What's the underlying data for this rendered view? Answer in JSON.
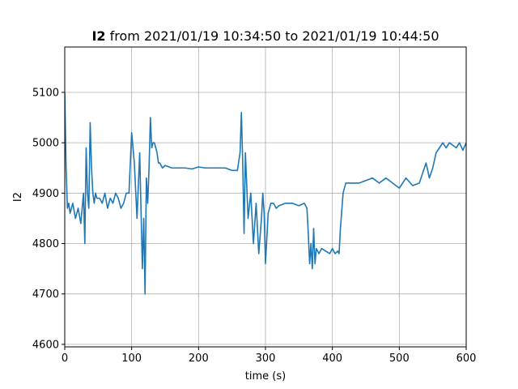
{
  "chart_data": {
    "type": "line",
    "title_bold": "I2",
    "title_rest": " from 2021/01/19 10:34:50 to 2021/01/19 10:44:50",
    "xlabel": "time (s)",
    "ylabel": "I2",
    "xlim": [
      0,
      600
    ],
    "ylim": [
      4595,
      5190
    ],
    "xticks": [
      0,
      100,
      200,
      300,
      400,
      500,
      600
    ],
    "yticks": [
      4600,
      4700,
      4800,
      4900,
      5000,
      5100
    ],
    "grid": true,
    "line_color": "#1f77b4",
    "series": [
      {
        "x": [
          0,
          2,
          4,
          6,
          8,
          12,
          16,
          20,
          24,
          28,
          30,
          32,
          34,
          36,
          38,
          40,
          42,
          44,
          46,
          48,
          52,
          56,
          60,
          64,
          68,
          72,
          76,
          80,
          84,
          88,
          92,
          96,
          100,
          104,
          108,
          112,
          116,
          118,
          120,
          122,
          124,
          126,
          128,
          130,
          132,
          134,
          136,
          138,
          140,
          142,
          146,
          150,
          160,
          170,
          180,
          190,
          200,
          210,
          220,
          230,
          240,
          250,
          258,
          262,
          264,
          266,
          268,
          270,
          274,
          278,
          282,
          286,
          290,
          294,
          296,
          298,
          300,
          304,
          308,
          312,
          316,
          320,
          330,
          340,
          350,
          358,
          362,
          364,
          366,
          368,
          370,
          372,
          374,
          376,
          380,
          384,
          390,
          396,
          400,
          404,
          408,
          410,
          412,
          416,
          420,
          430,
          440,
          450,
          460,
          470,
          480,
          490,
          500,
          510,
          520,
          530,
          540,
          545,
          550,
          555,
          560,
          565,
          570,
          575,
          580,
          585,
          590,
          595,
          600
        ],
        "y": [
          5100,
          4950,
          4870,
          4880,
          4860,
          4880,
          4850,
          4870,
          4840,
          4900,
          4800,
          4990,
          4900,
          4870,
          5040,
          4950,
          4900,
          4880,
          4900,
          4890,
          4890,
          4880,
          4900,
          4870,
          4890,
          4880,
          4900,
          4890,
          4870,
          4880,
          4900,
          4900,
          5020,
          4960,
          4850,
          4980,
          4750,
          4850,
          4700,
          4930,
          4880,
          4950,
          5050,
          4990,
          5000,
          5000,
          4990,
          4980,
          4960,
          4960,
          4950,
          4955,
          4950,
          4950,
          4950,
          4948,
          4952,
          4950,
          4950,
          4950,
          4950,
          4945,
          4945,
          4980,
          5060,
          4960,
          4820,
          4980,
          4850,
          4900,
          4800,
          4880,
          4780,
          4850,
          4900,
          4860,
          4760,
          4860,
          4880,
          4880,
          4870,
          4875,
          4880,
          4880,
          4875,
          4880,
          4870,
          4820,
          4760,
          4800,
          4750,
          4830,
          4760,
          4790,
          4780,
          4790,
          4785,
          4780,
          4790,
          4780,
          4785,
          4780,
          4830,
          4900,
          4920,
          4920,
          4920,
          4925,
          4930,
          4920,
          4930,
          4920,
          4910,
          4930,
          4915,
          4920,
          4960,
          4930,
          4950,
          4980,
          4990,
          5000,
          4990,
          5000,
          4995,
          4990,
          5000,
          4985,
          5000
        ]
      }
    ]
  }
}
